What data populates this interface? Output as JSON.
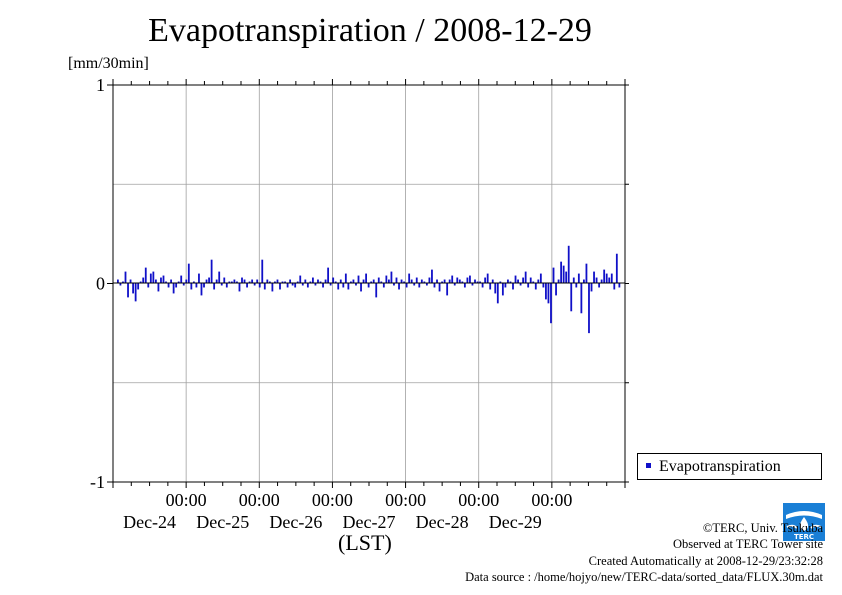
{
  "title": "Evapotranspiration / 2008-12-29",
  "unit_label": "[mm/30min]",
  "x_axis_label": "(LST)",
  "legend": {
    "label": "Evapotranspiration"
  },
  "credits": {
    "copyright": "©TERC, Univ. Tsukuba",
    "observed": "Observed at TERC Tower site",
    "created": "Created Automatically at 2008-12-29/23:32:28",
    "source": "Data source : /home/hojyo/new/TERC-data/sorted_data/FLUX.30m.dat"
  },
  "logo": {
    "icon": "terc-logo-icon",
    "text": "TERC"
  },
  "colors": {
    "series": "#1010c8",
    "grid": "#a0a0a0",
    "axis": "#000000"
  },
  "chart_data": {
    "type": "bar",
    "title": "Evapotranspiration / 2008-12-29",
    "ylabel": "[mm/30min]",
    "xlabel": "(LST)",
    "ylim": [
      -1,
      1
    ],
    "yticks": [
      -1,
      0,
      1
    ],
    "y_gridlines": [
      -0.5,
      0.5
    ],
    "grid": true,
    "legend_position": "bottom-right outside",
    "x_tick_labels": [
      {
        "time": "00:00",
        "date": "Dec-24"
      },
      {
        "time": "00:00",
        "date": "Dec-25"
      },
      {
        "time": "00:00",
        "date": "Dec-26"
      },
      {
        "time": "00:00",
        "date": "Dec-27"
      },
      {
        "time": "00:00",
        "date": "Dec-28"
      },
      {
        "time": "00:00",
        "date": "Dec-29"
      }
    ],
    "x_range_days": [
      -1,
      6
    ],
    "interval_minutes": 30,
    "series": [
      {
        "name": "Evapotranspiration",
        "values": [
          0.02,
          -0.01,
          0.01,
          0.06,
          -0.07,
          0.02,
          -0.05,
          -0.09,
          -0.03,
          0.01,
          0.03,
          0.08,
          -0.02,
          0.05,
          0.06,
          0.02,
          -0.04,
          0.03,
          0.04,
          0.01,
          -0.02,
          0.02,
          -0.05,
          -0.02,
          0.01,
          0.04,
          -0.01,
          0.02,
          0.1,
          -0.03,
          0.01,
          -0.02,
          0.05,
          -0.06,
          -0.02,
          0.02,
          0.03,
          0.12,
          -0.03,
          0.02,
          0.06,
          -0.01,
          0.03,
          -0.02,
          0.01,
          0.01,
          0.02,
          0.01,
          -0.04,
          0.03,
          0.02,
          -0.02,
          0.01,
          0.02,
          -0.01,
          0.02,
          -0.02,
          0.12,
          -0.03,
          0.02,
          0.01,
          -0.04,
          0.01,
          0.02,
          -0.03,
          0.01,
          0.01,
          -0.02,
          0.02,
          -0.01,
          -0.02,
          0.01,
          0.04,
          -0.01,
          0.02,
          -0.02,
          0.01,
          0.03,
          -0.01,
          0.02,
          0.01,
          -0.02,
          0.02,
          0.08,
          -0.01,
          0.03,
          0.01,
          -0.03,
          0.02,
          -0.02,
          0.05,
          -0.03,
          0.01,
          0.02,
          -0.01,
          0.04,
          -0.04,
          0.02,
          0.05,
          -0.02,
          0.01,
          0.02,
          -0.07,
          0.03,
          0.01,
          -0.02,
          0.04,
          0.02,
          0.06,
          -0.01,
          0.03,
          -0.03,
          0.02,
          0.01,
          -0.02,
          0.05,
          0.02,
          -0.01,
          0.03,
          -0.02,
          0.02,
          0.01,
          -0.01,
          0.03,
          0.07,
          -0.02,
          0.02,
          -0.04,
          0.01,
          0.02,
          -0.06,
          0.02,
          0.04,
          -0.01,
          0.03,
          0.02,
          0.01,
          -0.02,
          0.03,
          0.04,
          -0.01,
          0.02,
          0.01,
          0.01,
          -0.02,
          0.03,
          0.05,
          -0.03,
          0.02,
          -0.05,
          -0.1,
          0.01,
          -0.06,
          -0.02,
          0.02,
          0.01,
          -0.03,
          0.04,
          0.02,
          -0.01,
          0.03,
          0.06,
          -0.02,
          0.03,
          0.01,
          -0.03,
          0.02,
          0.05,
          -0.02,
          -0.08,
          -0.1,
          -0.2,
          0.08,
          -0.06,
          0.02,
          0.11,
          0.09,
          0.06,
          0.19,
          -0.14,
          0.03,
          -0.02,
          0.05,
          -0.15,
          0.02,
          0.1,
          -0.25,
          -0.04,
          0.06,
          0.03,
          -0.02,
          0.02,
          0.07,
          0.05,
          0.03,
          0.05,
          -0.03,
          0.15,
          -0.02
        ]
      }
    ]
  }
}
